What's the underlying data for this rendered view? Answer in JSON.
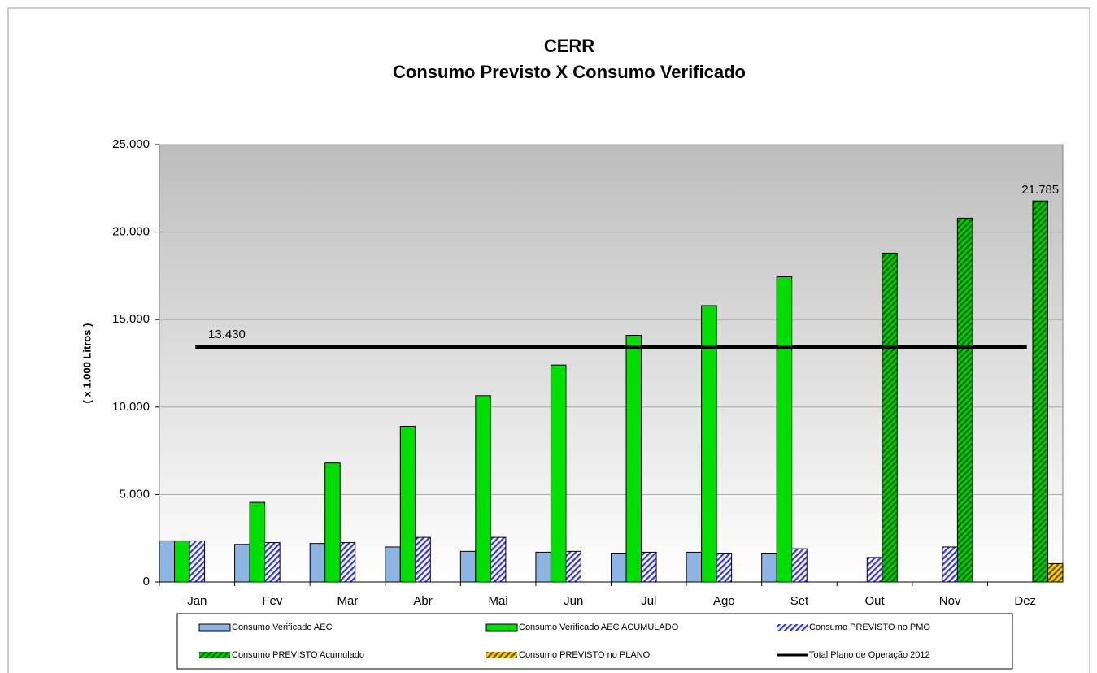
{
  "chart_data": {
    "type": "bar",
    "title": "CERR",
    "subtitle": "Consumo Previsto X Consumo Verificado",
    "y_label": "( x 1.000 Litros )",
    "categories": [
      "Jan",
      "Fev",
      "Mar",
      "Abr",
      "Mai",
      "Jun",
      "Jul",
      "Ago",
      "Set",
      "Out",
      "Nov",
      "Dez"
    ],
    "ylim": [
      0,
      25000
    ],
    "yticks": [
      0,
      {
        "value": 5000,
        "label": "5.000"
      },
      {
        "value": 10000,
        "label": "10.000"
      },
      {
        "value": 15000,
        "label": "15.000"
      },
      {
        "value": 20000,
        "label": "20.000"
      },
      {
        "value": 25000,
        "label": "25.000"
      }
    ],
    "grid": true,
    "legend": "bottom",
    "series": [
      {
        "name": "Consumo Verificado AEC",
        "color": "#8db4e2",
        "pattern": "solid",
        "values": [
          2350,
          2150,
          2200,
          2000,
          1750,
          1700,
          1650,
          1700,
          1650,
          null,
          null,
          null
        ]
      },
      {
        "name": "Consumo Verificado AEC ACUMULADO",
        "color": "#00dd00",
        "pattern": "solid",
        "values": [
          2350,
          4550,
          6800,
          8900,
          10650,
          12400,
          14100,
          15800,
          17450,
          null,
          null,
          null
        ]
      },
      {
        "name": "Consumo PREVISTO no PMO",
        "color": "#3333ff",
        "background": "#ffffff",
        "pattern": "hatch",
        "values": [
          2350,
          2250,
          2250,
          2550,
          2550,
          1750,
          1700,
          1650,
          1900,
          1400,
          2000,
          null
        ]
      },
      {
        "name": "Consumo PREVISTO Acumulado",
        "color": "#006600",
        "background": "#00cc00",
        "pattern": "hatch",
        "values": [
          null,
          null,
          null,
          null,
          null,
          null,
          null,
          null,
          null,
          18800,
          20800,
          21785
        ],
        "value_labels": [
          null,
          null,
          null,
          null,
          null,
          null,
          null,
          null,
          null,
          null,
          null,
          "21.785"
        ]
      },
      {
        "name": "Consumo PREVISTO no PLANO",
        "color": "#665500",
        "background": "#ffcc00",
        "pattern": "hatch",
        "values": [
          null,
          null,
          null,
          null,
          null,
          null,
          null,
          null,
          null,
          null,
          null,
          1050
        ]
      }
    ],
    "reference_line": {
      "name": "Total Plano de Operação 2012",
      "color": "#000000",
      "value": 13430,
      "value_label": "13.430"
    }
  }
}
